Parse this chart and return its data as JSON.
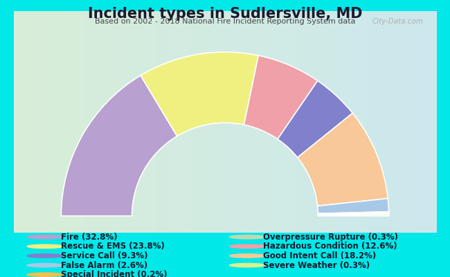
{
  "title": "Incident types in Sudlersville, MD",
  "subtitle": "Based on 2002 - 2018 National Fire Incident Reporting System data",
  "bg_color": "#00e8e8",
  "panel_color_left": "#daeeda",
  "panel_color_right": "#d0e8ee",
  "segments": [
    {
      "label": "Fire",
      "value": 32.8,
      "color": "#b8a0d0"
    },
    {
      "label": "Rescue & EMS",
      "value": 23.8,
      "color": "#f0f080"
    },
    {
      "label": "Hazardous Condition",
      "value": 12.6,
      "color": "#f0a0a8"
    },
    {
      "label": "Service Call",
      "value": 9.3,
      "color": "#8080cc"
    },
    {
      "label": "Good Intent Call",
      "value": 18.2,
      "color": "#f8c898"
    },
    {
      "label": "False Alarm",
      "value": 2.6,
      "color": "#a8c8e8"
    },
    {
      "label": "Overpressure Rupture",
      "value": 0.3,
      "color": "#c0d8b0"
    },
    {
      "label": "Special Incident",
      "value": 0.2,
      "color": "#f0c050"
    },
    {
      "label": "Severe Weather",
      "value": 0.3,
      "color": "#d8f090"
    }
  ],
  "legend_left": [
    {
      "label": "Fire (32.8%)",
      "color": "#b8a0d0"
    },
    {
      "label": "Rescue & EMS (23.8%)",
      "color": "#f0f080"
    },
    {
      "label": "Service Call (9.3%)",
      "color": "#8080cc"
    },
    {
      "label": "False Alarm (2.6%)",
      "color": "#a8c8e8"
    },
    {
      "label": "Special Incident (0.2%)",
      "color": "#f0c050"
    }
  ],
  "legend_right": [
    {
      "label": "Overpressure Rupture (0.3%)",
      "color": "#c0d8b0"
    },
    {
      "label": "Hazardous Condition (12.6%)",
      "color": "#f0a0a8"
    },
    {
      "label": "Good Intent Call (18.2%)",
      "color": "#f8c898"
    },
    {
      "label": "Severe Weather (0.3%)",
      "color": "#d8f090"
    }
  ],
  "outer_r": 0.88,
  "inner_r": 0.5,
  "title_fontsize": 15,
  "subtitle_fontsize": 8,
  "legend_fontsize": 8.5
}
